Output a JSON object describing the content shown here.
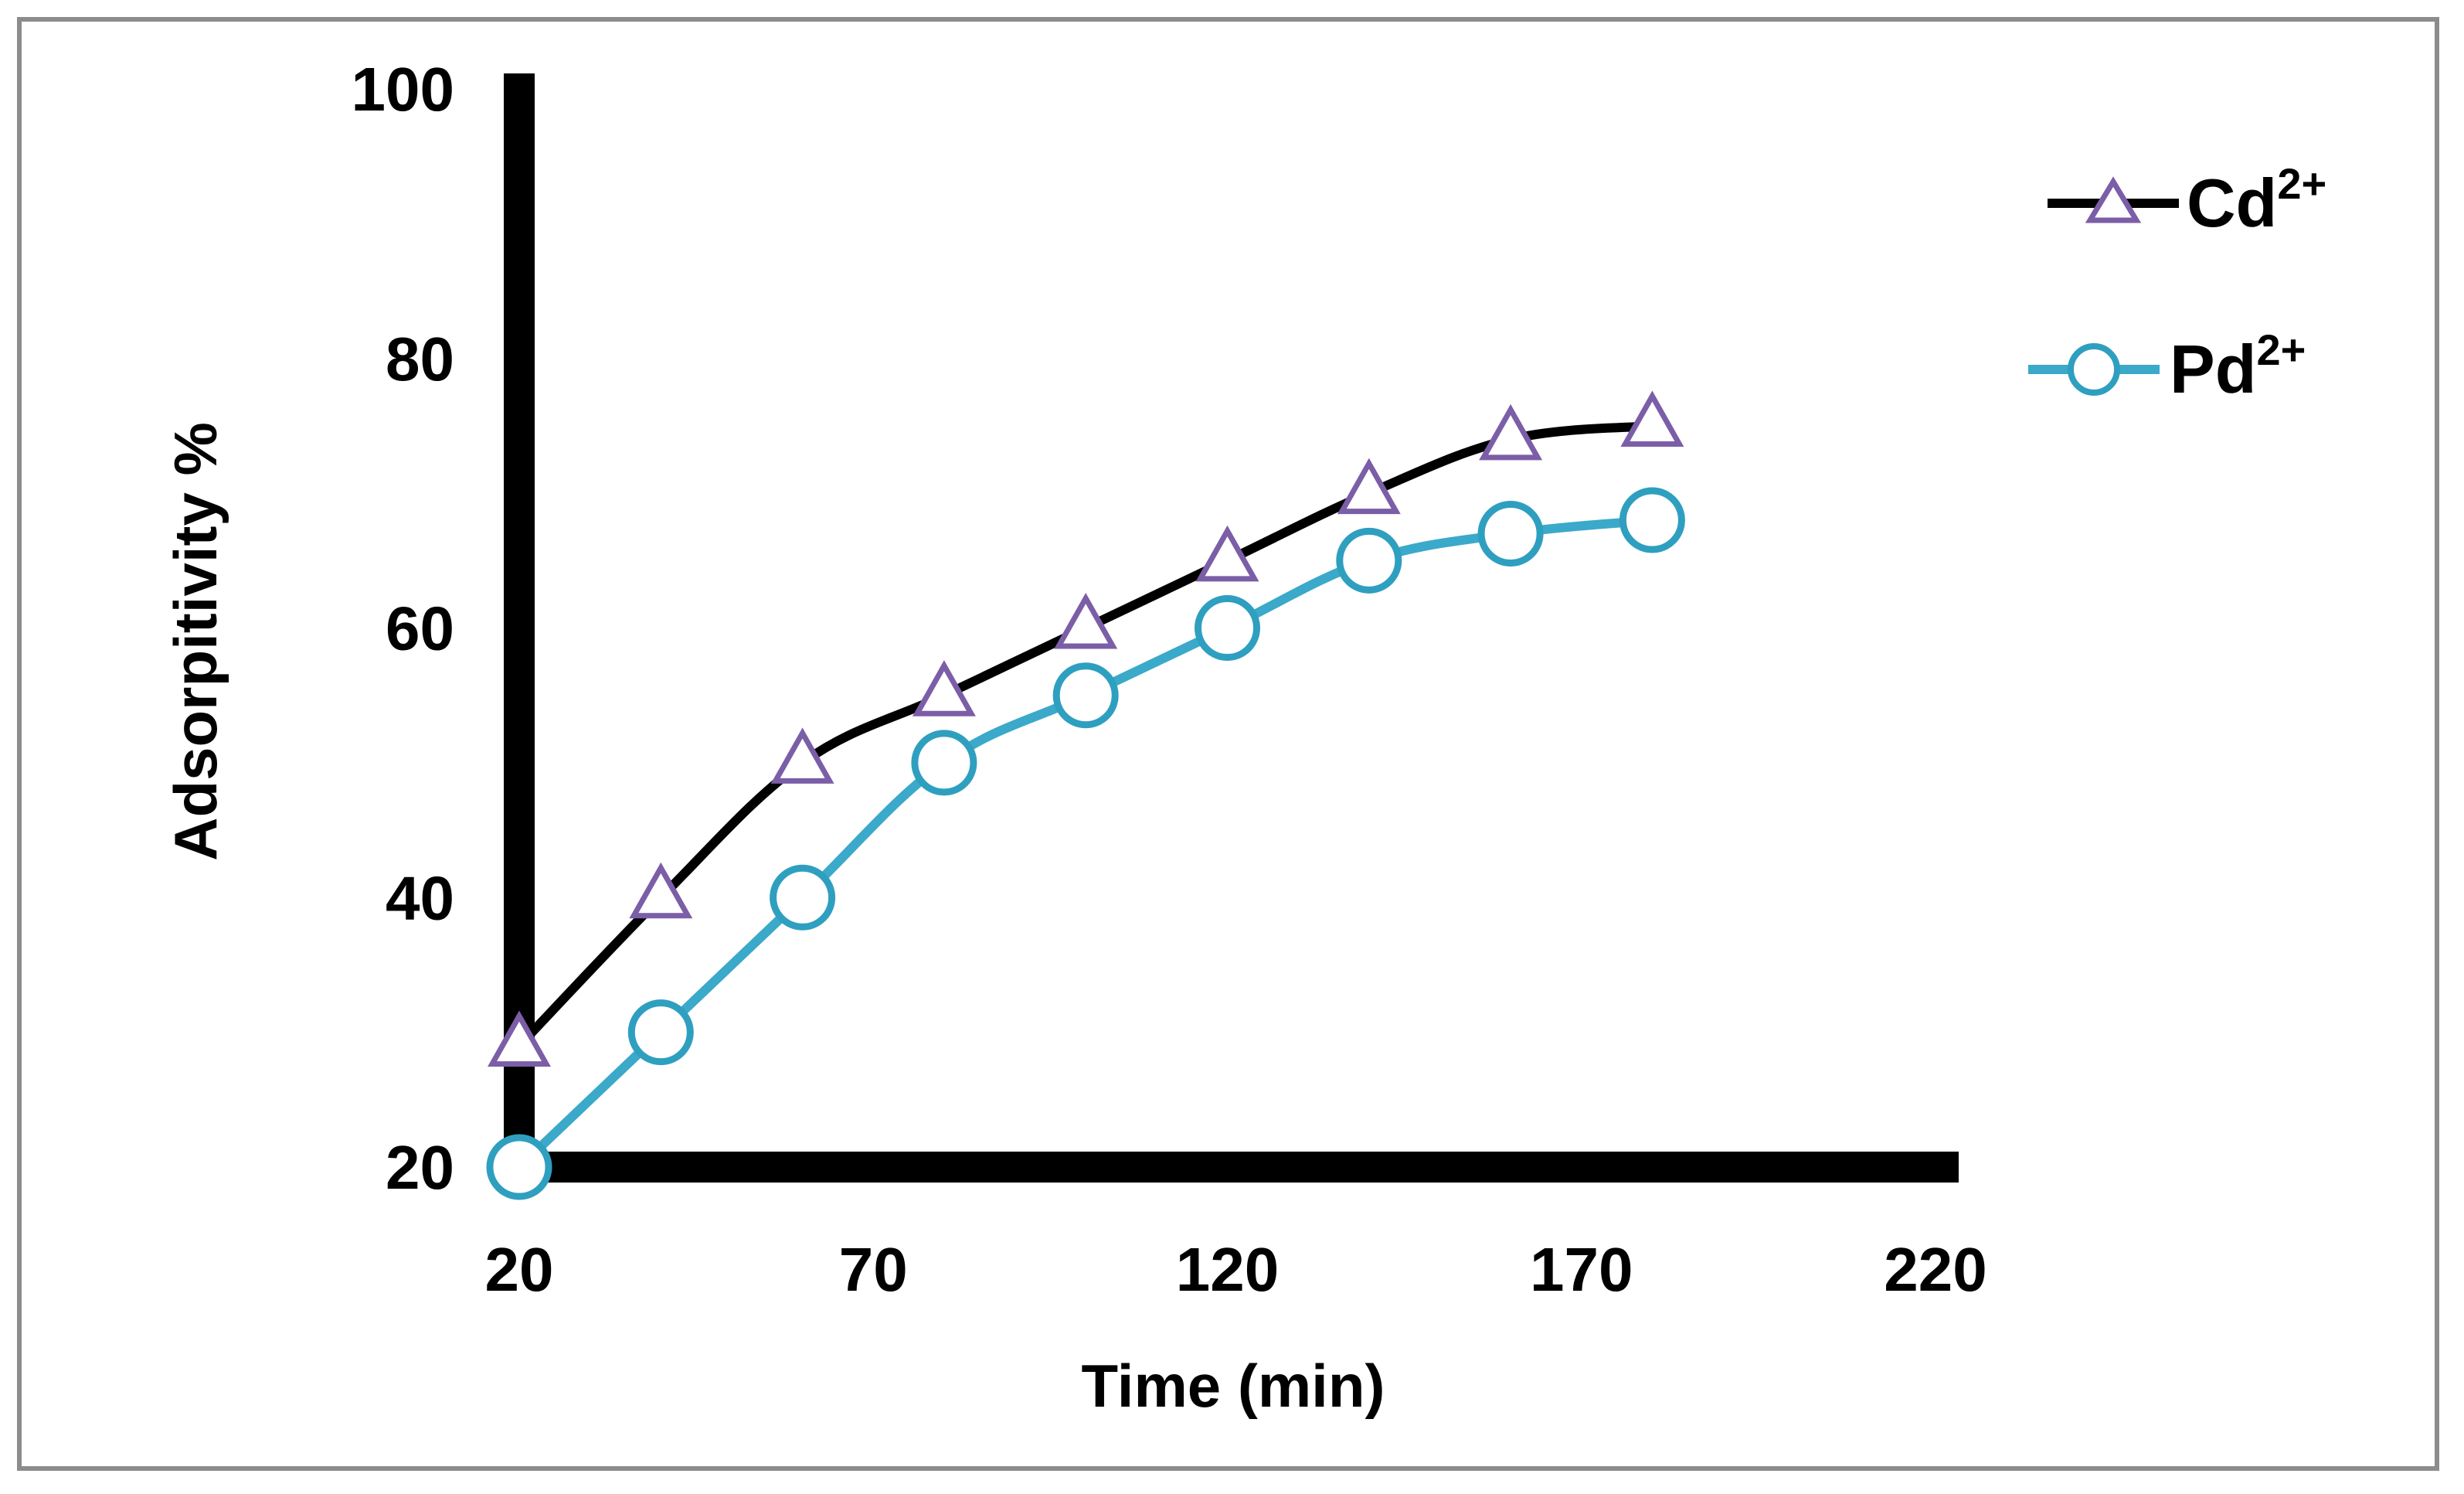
{
  "chart_data": {
    "type": "line",
    "title": "",
    "xlabel": "Time (min)",
    "ylabel": "Adsorpitivity %",
    "xlim": [
      20,
      220
    ],
    "ylim": [
      20,
      100
    ],
    "x_ticks": [
      "20",
      "70",
      "120",
      "170",
      "220"
    ],
    "y_ticks": [
      "20",
      "40",
      "60",
      "80",
      "100"
    ],
    "grid": false,
    "legend_position": "top-right",
    "series": [
      {
        "name": "Cd",
        "superscript": "2+",
        "marker": "triangle",
        "line_color": "#000000",
        "marker_color": "#7b5ea7",
        "x": [
          20,
          40,
          60,
          80,
          100,
          120,
          140,
          160,
          180
        ],
        "values": [
          29,
          40,
          50,
          55,
          60,
          65,
          70,
          74,
          75
        ]
      },
      {
        "name": "Pd",
        "superscript": "2+",
        "marker": "circle",
        "line_color": "#3ba9c9",
        "marker_color": "#2f9fc0",
        "x": [
          20,
          40,
          60,
          80,
          100,
          120,
          140,
          160,
          180
        ],
        "values": [
          20,
          30,
          40,
          50,
          55,
          60,
          65,
          67,
          68
        ]
      }
    ]
  }
}
